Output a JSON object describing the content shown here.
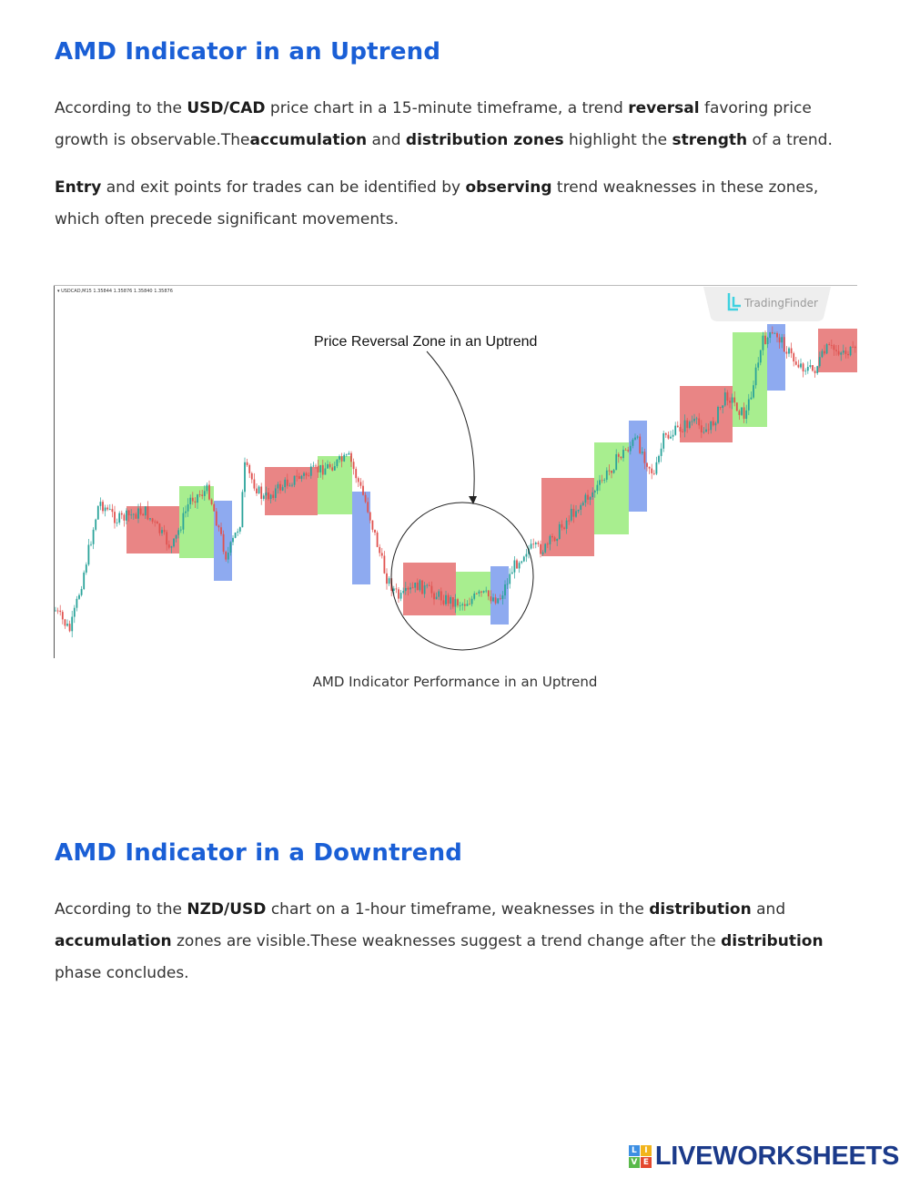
{
  "section1": {
    "heading": "AMD Indicator in an Uptrend",
    "p1": [
      {
        "t": "According to the "
      },
      {
        "t": "USD/CAD",
        "b": true
      },
      {
        "t": " price chart in a 15-minute timeframe, a trend "
      },
      {
        "t": "reversal",
        "b": true
      },
      {
        "t": " favoring price growth is observable.The"
      },
      {
        "t": "accumulation",
        "b": true
      },
      {
        "t": " and "
      },
      {
        "t": "distribution zones",
        "b": true
      },
      {
        "t": " highlight the "
      },
      {
        "t": "strength",
        "b": true
      },
      {
        "t": " of a trend."
      }
    ],
    "p2": [
      {
        "t": "Entry",
        "b": true
      },
      {
        "t": " and exit points for trades can be identified by "
      },
      {
        "t": "observing",
        "b": true
      },
      {
        "t": " trend weaknesses in these zones, which often precede significant movements."
      }
    ]
  },
  "figure": {
    "symbol_info": "▾ USDCAD,M15  1.35844 1.35876 1.35840 1.35876",
    "watermark": "TradingFinder",
    "annotation": "Price Reversal Zone in an Uptrend",
    "caption": "AMD Indicator Performance in an Uptrend",
    "colors": {
      "accumulation": "#e98585",
      "manipulation": "#a8ee8f",
      "distribution": "#8eaaf0",
      "bull": "#2aa39a",
      "bear": "#e0524f"
    }
  },
  "section2": {
    "heading": "AMD Indicator in a Downtrend",
    "p1": [
      {
        "t": "According to the "
      },
      {
        "t": "NZD/USD",
        "b": true
      },
      {
        "t": " chart on a 1-hour timeframe, weaknesses in the "
      },
      {
        "t": "distribution",
        "b": true
      },
      {
        "t": " and "
      },
      {
        "t": "accumulation",
        "b": true
      },
      {
        "t": " zones are visible.These weaknesses suggest a trend change after the "
      },
      {
        "t": "distribution",
        "b": true
      },
      {
        "t": " phase concludes."
      }
    ]
  },
  "brand": {
    "blocks": [
      "L",
      "I",
      "V",
      "E"
    ],
    "name": "LIVEWORKSHEETS"
  }
}
